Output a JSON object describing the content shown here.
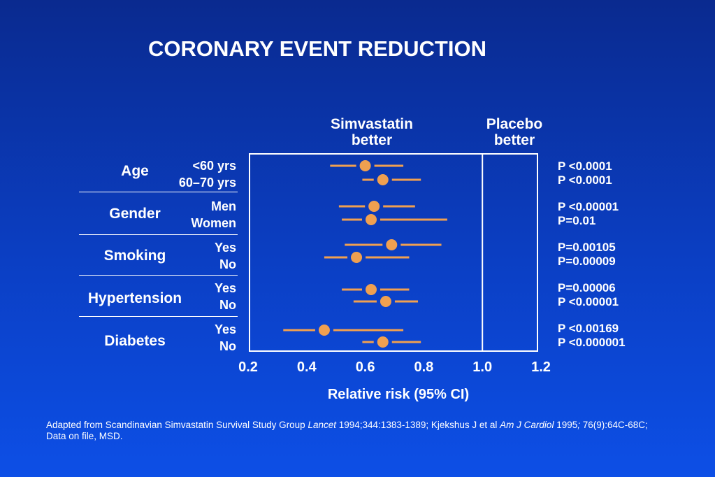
{
  "title": "CORONARY EVENT REDUCTION",
  "header_left": [
    "Simvastatin",
    "better"
  ],
  "header_right": [
    "Placebo",
    "better"
  ],
  "groups": [
    {
      "name": "Age",
      "rows": [
        {
          "label": "<60 yrs",
          "p": "P <0.0001"
        },
        {
          "label": "60–70 yrs",
          "p": "P <0.0001"
        }
      ]
    },
    {
      "name": "Gender",
      "rows": [
        {
          "label": "Men",
          "p": "P <0.00001"
        },
        {
          "label": "Women",
          "p": "P=0.01"
        }
      ]
    },
    {
      "name": "Smoking",
      "rows": [
        {
          "label": "Yes",
          "p": "P=0.00105"
        },
        {
          "label": "No",
          "p": "P=0.00009"
        }
      ]
    },
    {
      "name": "Hypertension",
      "rows": [
        {
          "label": "Yes",
          "p": "P=0.00006"
        },
        {
          "label": "No",
          "p": "P <0.00001"
        }
      ]
    },
    {
      "name": "Diabetes",
      "rows": [
        {
          "label": "Yes",
          "p": "P <0.00169"
        },
        {
          "label": "No",
          "p": "P <0.000001"
        }
      ]
    }
  ],
  "chart_data": {
    "type": "scatter",
    "subtype": "forest-plot",
    "xlabel": "Relative risk (95% CI)",
    "xlim": [
      0.2,
      1.2
    ],
    "xticks": [
      "0.2",
      "0.4",
      "0.6",
      "0.8",
      "1.0",
      "1.2"
    ],
    "reference_line": 1.0,
    "marker_color": "#f0a050",
    "rows": [
      {
        "group": "Age",
        "label": "<60 yrs",
        "rr": 0.6,
        "lo": 0.48,
        "hi": 0.73
      },
      {
        "group": "Age",
        "label": "60–70 yrs",
        "rr": 0.66,
        "lo": 0.59,
        "hi": 0.79
      },
      {
        "group": "Gender",
        "label": "Men",
        "rr": 0.63,
        "lo": 0.51,
        "hi": 0.77
      },
      {
        "group": "Gender",
        "label": "Women",
        "rr": 0.62,
        "lo": 0.52,
        "hi": 0.88
      },
      {
        "group": "Smoking",
        "label": "Yes",
        "rr": 0.69,
        "lo": 0.53,
        "hi": 0.86
      },
      {
        "group": "Smoking",
        "label": "No",
        "rr": 0.57,
        "lo": 0.46,
        "hi": 0.75
      },
      {
        "group": "Hypertension",
        "label": "Yes",
        "rr": 0.62,
        "lo": 0.52,
        "hi": 0.75
      },
      {
        "group": "Hypertension",
        "label": "No",
        "rr": 0.67,
        "lo": 0.56,
        "hi": 0.78
      },
      {
        "group": "Diabetes",
        "label": "Yes",
        "rr": 0.46,
        "lo": 0.32,
        "hi": 0.73
      },
      {
        "group": "Diabetes",
        "label": "No",
        "rr": 0.66,
        "lo": 0.59,
        "hi": 0.79
      }
    ]
  },
  "footnote": {
    "part1": "Adapted from Scandinavian Simvastatin Survival Study Group ",
    "journal1": "Lancet",
    "part2": " 1994;344:1383-1389; Kjekshus J et al ",
    "journal2": "Am J Cardiol",
    "part3": " 1995",
    "semicolon": ";",
    "part4": " 76(9):64C-68C; Data on file, MSD."
  }
}
